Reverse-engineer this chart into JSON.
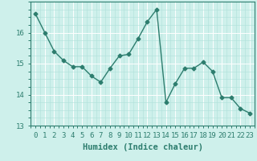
{
  "x": [
    0,
    1,
    2,
    3,
    4,
    5,
    6,
    7,
    8,
    9,
    10,
    11,
    12,
    13,
    14,
    15,
    16,
    17,
    18,
    19,
    20,
    21,
    22,
    23
  ],
  "y": [
    16.6,
    16.0,
    15.4,
    15.1,
    14.9,
    14.9,
    14.6,
    14.4,
    14.85,
    15.25,
    15.3,
    15.8,
    16.35,
    16.75,
    13.75,
    14.35,
    14.85,
    14.85,
    15.05,
    14.75,
    13.9,
    13.9,
    13.55,
    13.4
  ],
  "line_color": "#2d7d6e",
  "bg_color": "#cef0eb",
  "grid_color_major": "#ffffff",
  "grid_color_minor": "#aee0da",
  "xlabel": "Humidex (Indice chaleur)",
  "ylim": [
    13.0,
    17.0
  ],
  "xlim": [
    -0.5,
    23.5
  ],
  "yticks": [
    13,
    14,
    15,
    16
  ],
  "xticks": [
    0,
    1,
    2,
    3,
    4,
    5,
    6,
    7,
    8,
    9,
    10,
    11,
    12,
    13,
    14,
    15,
    16,
    17,
    18,
    19,
    20,
    21,
    22,
    23
  ],
  "xlabel_fontsize": 7.5,
  "tick_fontsize": 6.5,
  "marker": "D",
  "marker_size": 2.5,
  "linewidth": 1.0
}
